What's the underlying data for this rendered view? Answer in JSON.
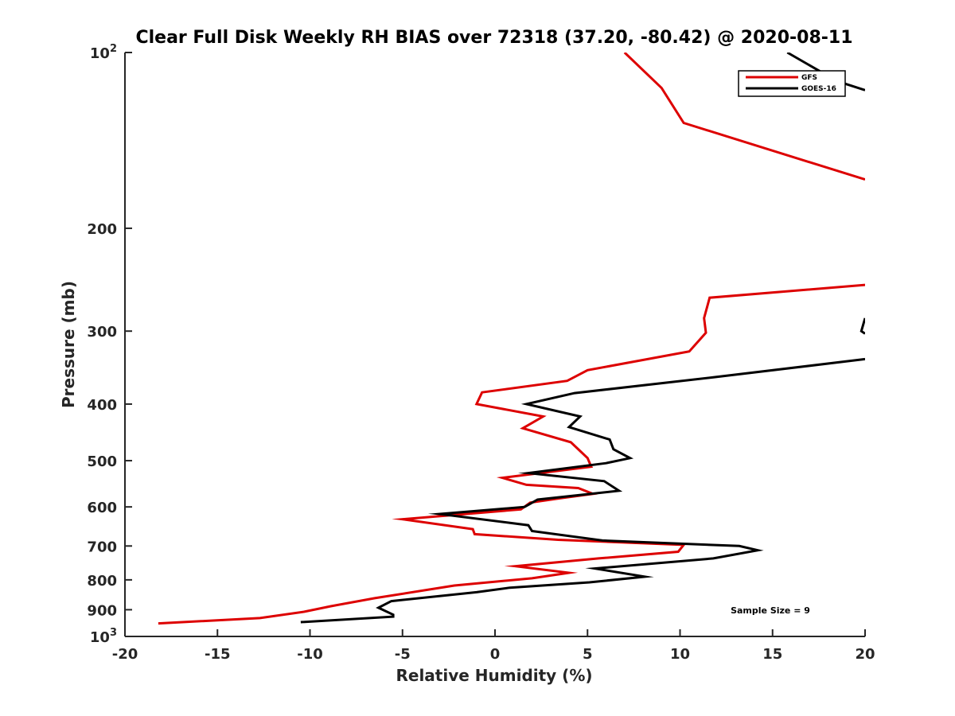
{
  "chart_data": {
    "type": "line",
    "title": "Clear Full Disk Weekly RH BIAS over 72318 (37.20, -80.42) @ 2020-08-11",
    "xlabel": "Relative Humidity (%)",
    "ylabel": "Pressure (mb)",
    "xlim": [
      -20,
      20
    ],
    "ylim": [
      100,
      1000
    ],
    "yscale": "log",
    "y_reversed": true,
    "grid": false,
    "legend_position": "top-right",
    "x_ticks": [
      "-20",
      "-15",
      "-10",
      "-5",
      "0",
      "5",
      "10",
      "15",
      "20"
    ],
    "y_ticks": [
      {
        "value": 100,
        "base": "10",
        "exp": "2"
      },
      {
        "value": 200,
        "label": "200"
      },
      {
        "value": 300,
        "label": "300"
      },
      {
        "value": 400,
        "label": "400"
      },
      {
        "value": 500,
        "label": "500"
      },
      {
        "value": 600,
        "label": "600"
      },
      {
        "value": 700,
        "label": "700"
      },
      {
        "value": 800,
        "label": "800"
      },
      {
        "value": 900,
        "label": "900"
      },
      {
        "value": 1000,
        "base": "10",
        "exp": "3"
      }
    ],
    "annotation": "Sample Size = 9",
    "series": [
      {
        "name": "GFS",
        "color": "#dd0000",
        "segments": [
          [
            [
              7.0,
              100
            ],
            [
              9.0,
              115
            ],
            [
              10.2,
              132
            ],
            [
              20.0,
              165
            ]
          ],
          [
            [
              20.0,
              250
            ],
            [
              11.6,
              263
            ],
            [
              11.3,
              285
            ],
            [
              11.4,
              302
            ],
            [
              10.5,
              325
            ],
            [
              5.0,
              350
            ],
            [
              3.9,
              365
            ],
            [
              -0.7,
              382
            ],
            [
              -1.0,
              400
            ],
            [
              2.6,
              420
            ],
            [
              1.5,
              440
            ],
            [
              4.1,
              465
            ],
            [
              5.0,
              495
            ],
            [
              5.2,
              512
            ],
            [
              0.4,
              535
            ],
            [
              1.7,
              550
            ],
            [
              4.5,
              557
            ],
            [
              5.3,
              570
            ],
            [
              3.5,
              580
            ],
            [
              1.9,
              590
            ],
            [
              1.4,
              606
            ],
            [
              -5.0,
              630
            ],
            [
              -1.2,
              655
            ],
            [
              -1.1,
              668
            ],
            [
              3.4,
              683
            ],
            [
              10.2,
              697
            ],
            [
              9.9,
              716
            ],
            [
              5.6,
              735
            ],
            [
              1.1,
              758
            ],
            [
              4.0,
              778
            ],
            [
              2.0,
              795
            ],
            [
              -2.2,
              818
            ],
            [
              -6.5,
              860
            ],
            [
              -8.9,
              888
            ],
            [
              -10.3,
              907
            ],
            [
              -12.7,
              930
            ],
            [
              -18.2,
              950
            ]
          ]
        ]
      },
      {
        "name": "GOES-16",
        "color": "#000000",
        "segments": [
          [
            [
              15.8,
              100
            ],
            [
              18.5,
              112
            ],
            [
              20.0,
              116
            ]
          ],
          [
            [
              20.0,
              285
            ],
            [
              19.8,
              300
            ],
            [
              20.0,
              303
            ]
          ],
          [
            [
              20.0,
              335
            ],
            [
              11.8,
              360
            ],
            [
              4.3,
              383
            ],
            [
              1.7,
              400
            ],
            [
              4.6,
              420
            ],
            [
              4.0,
              438
            ],
            [
              6.2,
              460
            ],
            [
              6.4,
              478
            ],
            [
              7.3,
              495
            ],
            [
              6.0,
              505
            ],
            [
              1.8,
              525
            ],
            [
              5.9,
              542
            ],
            [
              6.7,
              563
            ],
            [
              2.3,
              583
            ],
            [
              1.6,
              600
            ],
            [
              -3.0,
              617
            ],
            [
              1.8,
              645
            ],
            [
              2.0,
              660
            ],
            [
              5.8,
              685
            ],
            [
              13.2,
              700
            ],
            [
              14.2,
              712
            ],
            [
              11.8,
              735
            ],
            [
              5.4,
              765
            ],
            [
              8.1,
              790
            ],
            [
              5.1,
              808
            ],
            [
              0.8,
              825
            ],
            [
              -1.0,
              840
            ],
            [
              -5.6,
              870
            ],
            [
              -6.3,
              893
            ],
            [
              -5.5,
              918
            ],
            [
              -5.5,
              925
            ],
            [
              -10.5,
              945
            ]
          ]
        ]
      }
    ]
  }
}
